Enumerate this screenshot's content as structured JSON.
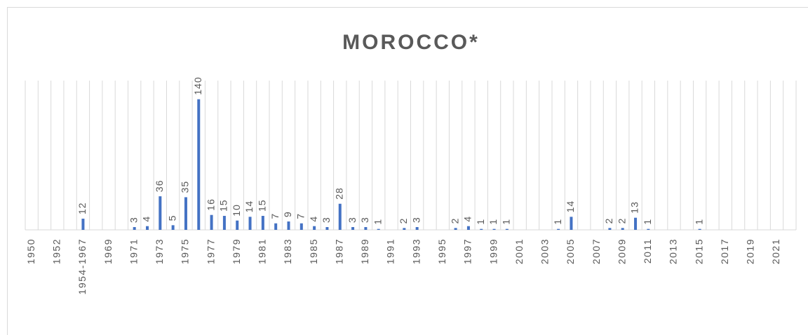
{
  "chart_data": {
    "type": "bar",
    "title": "MOROCCO*",
    "color": "#4472c4",
    "categories": [
      "1950",
      null,
      "1952",
      null,
      "1954-1967",
      null,
      "1969",
      null,
      "1971",
      null,
      "1973",
      null,
      "1975",
      null,
      "1977",
      null,
      "1979",
      null,
      "1981",
      null,
      "1983",
      null,
      "1985",
      null,
      "1987",
      null,
      "1989",
      null,
      "1991",
      null,
      "1993",
      null,
      "1995",
      null,
      "1997",
      null,
      "1999",
      null,
      "2001",
      null,
      "2003",
      null,
      "2005",
      null,
      "2007",
      null,
      "2009",
      null,
      "2011",
      null,
      "2013",
      null,
      "2015",
      null,
      "2017",
      null,
      "2019",
      null,
      "2021",
      null
    ],
    "values": [
      null,
      null,
      null,
      null,
      12,
      null,
      null,
      null,
      3,
      4,
      36,
      5,
      35,
      140,
      16,
      15,
      10,
      14,
      15,
      7,
      9,
      7,
      4,
      3,
      28,
      3,
      3,
      1,
      null,
      2,
      3,
      null,
      null,
      2,
      4,
      1,
      1,
      1,
      null,
      null,
      null,
      1,
      14,
      null,
      null,
      2,
      2,
      13,
      1,
      null,
      null,
      null,
      1,
      null,
      null,
      null,
      null,
      null,
      null,
      null
    ],
    "ylim": [
      0,
      160
    ]
  }
}
